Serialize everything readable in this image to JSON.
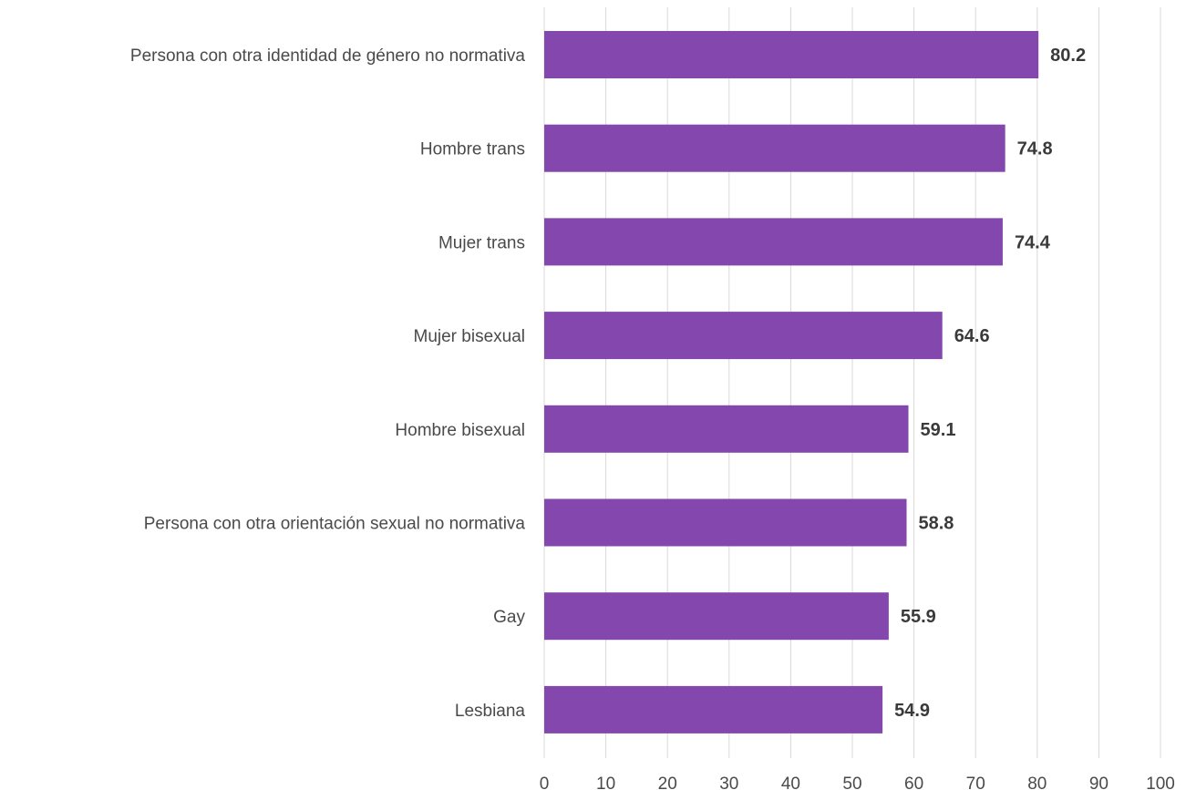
{
  "chart_data": {
    "type": "bar",
    "orientation": "horizontal",
    "title": "",
    "xlabel": "",
    "ylabel": "",
    "xlim": [
      0,
      100
    ],
    "ticks": [
      0,
      10,
      20,
      30,
      40,
      50,
      60,
      70,
      80,
      90,
      100
    ],
    "grid": true,
    "legend": "none",
    "bar_color": "#8347ad",
    "categories": [
      "Persona con otra identidad de género no normativa",
      "Hombre trans",
      "Mujer trans",
      "Mujer bisexual",
      "Hombre bisexual",
      "Persona con otra orientación sexual no normativa",
      "Gay",
      "Lesbiana"
    ],
    "values": [
      80.2,
      74.8,
      74.4,
      64.6,
      59.1,
      58.8,
      55.9,
      54.9
    ],
    "value_labels": [
      "80.2",
      "74.8",
      "74.4",
      "64.6",
      "59.1",
      "58.8",
      "55.9",
      "54.9"
    ]
  }
}
